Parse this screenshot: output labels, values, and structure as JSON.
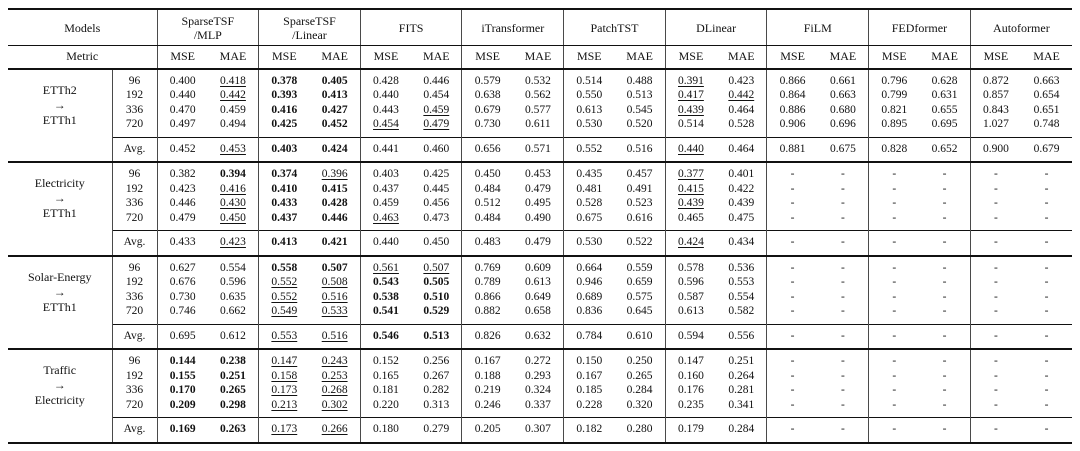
{
  "table": {
    "models_label": "Models",
    "metric_label": "Metric",
    "avg_label": "Avg.",
    "metrics": [
      "MSE",
      "MAE"
    ],
    "style_codes": {
      "b": "best (bold)",
      "u": "second best (underline)"
    },
    "groups": [
      {
        "id": "sparsetsf-mlp",
        "name": [
          "SparseTSF",
          "/MLP"
        ]
      },
      {
        "id": "sparsetsf-linear",
        "name": [
          "SparseTSF",
          "/Linear"
        ]
      },
      {
        "id": "fits",
        "name": [
          "FITS"
        ]
      },
      {
        "id": "itransformer",
        "name": [
          "iTransformer"
        ]
      },
      {
        "id": "patchtst",
        "name": [
          "PatchTST"
        ]
      },
      {
        "id": "dlinear",
        "name": [
          "DLinear"
        ]
      },
      {
        "id": "film",
        "name": [
          "FiLM"
        ]
      },
      {
        "id": "fedformer",
        "name": [
          "FEDformer"
        ]
      },
      {
        "id": "autoformer",
        "name": [
          "Autoformer"
        ]
      }
    ],
    "sections": [
      {
        "dataset": [
          "ETTh2",
          "→",
          "ETTh1"
        ],
        "rows": [
          {
            "horizon": "96",
            "cells": [
              "0.400",
              {
                "v": "0.418",
                "s": "u"
              },
              {
                "v": "0.378",
                "s": "b"
              },
              {
                "v": "0.405",
                "s": "b"
              },
              "0.428",
              "0.446",
              "0.579",
              "0.532",
              "0.514",
              "0.488",
              {
                "v": "0.391",
                "s": "u"
              },
              "0.423",
              "0.866",
              "0.661",
              "0.796",
              "0.628",
              "0.872",
              "0.663"
            ]
          },
          {
            "horizon": "192",
            "cells": [
              "0.440",
              {
                "v": "0.442",
                "s": "u"
              },
              {
                "v": "0.393",
                "s": "b"
              },
              {
                "v": "0.413",
                "s": "b"
              },
              "0.440",
              "0.454",
              "0.638",
              "0.562",
              "0.550",
              "0.513",
              {
                "v": "0.417",
                "s": "u"
              },
              {
                "v": "0.442",
                "s": "u"
              },
              "0.864",
              "0.663",
              "0.799",
              "0.631",
              "0.857",
              "0.654"
            ]
          },
          {
            "horizon": "336",
            "cells": [
              "0.470",
              "0.459",
              {
                "v": "0.416",
                "s": "b"
              },
              {
                "v": "0.427",
                "s": "b"
              },
              "0.443",
              {
                "v": "0.459",
                "s": "u"
              },
              "0.679",
              "0.577",
              "0.613",
              "0.545",
              {
                "v": "0.439",
                "s": "u"
              },
              "0.464",
              "0.886",
              "0.680",
              "0.821",
              "0.655",
              "0.843",
              "0.651"
            ]
          },
          {
            "horizon": "720",
            "cells": [
              "0.497",
              "0.494",
              {
                "v": "0.425",
                "s": "b"
              },
              {
                "v": "0.452",
                "s": "b"
              },
              {
                "v": "0.454",
                "s": "u"
              },
              {
                "v": "0.479",
                "s": "u"
              },
              "0.730",
              "0.611",
              "0.530",
              "0.520",
              "0.514",
              "0.528",
              "0.906",
              "0.696",
              "0.895",
              "0.695",
              "1.027",
              "0.748"
            ]
          }
        ],
        "avg_cells": [
          "0.452",
          {
            "v": "0.453",
            "s": "u"
          },
          {
            "v": "0.403",
            "s": "b"
          },
          {
            "v": "0.424",
            "s": "b"
          },
          "0.441",
          "0.460",
          "0.656",
          "0.571",
          "0.552",
          "0.516",
          {
            "v": "0.440",
            "s": "u"
          },
          "0.464",
          "0.881",
          "0.675",
          "0.828",
          "0.652",
          "0.900",
          "0.679"
        ]
      },
      {
        "dataset": [
          "Electricity",
          "→",
          "ETTh1"
        ],
        "rows": [
          {
            "horizon": "96",
            "cells": [
              "0.382",
              {
                "v": "0.394",
                "s": "b"
              },
              {
                "v": "0.374",
                "s": "b"
              },
              {
                "v": "0.396",
                "s": "u"
              },
              "0.403",
              "0.425",
              "0.450",
              "0.453",
              "0.435",
              "0.457",
              {
                "v": "0.377",
                "s": "u"
              },
              "0.401",
              "-",
              "-",
              "-",
              "-",
              "-",
              "-"
            ]
          },
          {
            "horizon": "192",
            "cells": [
              "0.423",
              {
                "v": "0.416",
                "s": "u"
              },
              {
                "v": "0.410",
                "s": "b"
              },
              {
                "v": "0.415",
                "s": "b"
              },
              "0.437",
              "0.445",
              "0.484",
              "0.479",
              "0.481",
              "0.491",
              {
                "v": "0.415",
                "s": "u"
              },
              "0.422",
              "-",
              "-",
              "-",
              "-",
              "-",
              "-"
            ]
          },
          {
            "horizon": "336",
            "cells": [
              "0.446",
              {
                "v": "0.430",
                "s": "u"
              },
              {
                "v": "0.433",
                "s": "b"
              },
              {
                "v": "0.428",
                "s": "b"
              },
              "0.459",
              "0.456",
              "0.512",
              "0.495",
              "0.528",
              "0.523",
              {
                "v": "0.439",
                "s": "u"
              },
              "0.439",
              "-",
              "-",
              "-",
              "-",
              "-",
              "-"
            ]
          },
          {
            "horizon": "720",
            "cells": [
              "0.479",
              {
                "v": "0.450",
                "s": "u"
              },
              {
                "v": "0.437",
                "s": "b"
              },
              {
                "v": "0.446",
                "s": "b"
              },
              {
                "v": "0.463",
                "s": "u"
              },
              "0.473",
              "0.484",
              "0.490",
              "0.675",
              "0.616",
              "0.465",
              "0.475",
              "-",
              "-",
              "-",
              "-",
              "-",
              "-"
            ]
          }
        ],
        "avg_cells": [
          "0.433",
          {
            "v": "0.423",
            "s": "u"
          },
          {
            "v": "0.413",
            "s": "b"
          },
          {
            "v": "0.421",
            "s": "b"
          },
          "0.440",
          "0.450",
          "0.483",
          "0.479",
          "0.530",
          "0.522",
          {
            "v": "0.424",
            "s": "u"
          },
          "0.434",
          "-",
          "-",
          "-",
          "-",
          "-",
          "-"
        ]
      },
      {
        "dataset": [
          "Solar-Energy",
          "→",
          "ETTh1"
        ],
        "rows": [
          {
            "horizon": "96",
            "cells": [
              "0.627",
              "0.554",
              {
                "v": "0.558",
                "s": "b"
              },
              {
                "v": "0.507",
                "s": "b"
              },
              {
                "v": "0.561",
                "s": "u"
              },
              {
                "v": "0.507",
                "s": "u"
              },
              "0.769",
              "0.609",
              "0.664",
              "0.559",
              "0.578",
              "0.536",
              "-",
              "-",
              "-",
              "-",
              "-",
              "-"
            ]
          },
          {
            "horizon": "192",
            "cells": [
              "0.676",
              "0.596",
              {
                "v": "0.552",
                "s": "u"
              },
              {
                "v": "0.508",
                "s": "u"
              },
              {
                "v": "0.543",
                "s": "b"
              },
              {
                "v": "0.505",
                "s": "b"
              },
              "0.789",
              "0.613",
              "0.946",
              "0.659",
              "0.596",
              "0.553",
              "-",
              "-",
              "-",
              "-",
              "-",
              "-"
            ]
          },
          {
            "horizon": "336",
            "cells": [
              "0.730",
              "0.635",
              {
                "v": "0.552",
                "s": "u"
              },
              {
                "v": "0.516",
                "s": "u"
              },
              {
                "v": "0.538",
                "s": "b"
              },
              {
                "v": "0.510",
                "s": "b"
              },
              "0.866",
              "0.649",
              "0.689",
              "0.575",
              "0.587",
              "0.554",
              "-",
              "-",
              "-",
              "-",
              "-",
              "-"
            ]
          },
          {
            "horizon": "720",
            "cells": [
              "0.746",
              "0.662",
              {
                "v": "0.549",
                "s": "u"
              },
              {
                "v": "0.533",
                "s": "u"
              },
              {
                "v": "0.541",
                "s": "b"
              },
              {
                "v": "0.529",
                "s": "b"
              },
              "0.882",
              "0.658",
              "0.836",
              "0.645",
              "0.613",
              "0.582",
              "-",
              "-",
              "-",
              "-",
              "-",
              "-"
            ]
          }
        ],
        "avg_cells": [
          "0.695",
          "0.612",
          {
            "v": "0.553",
            "s": "u"
          },
          {
            "v": "0.516",
            "s": "u"
          },
          {
            "v": "0.546",
            "s": "b"
          },
          {
            "v": "0.513",
            "s": "b"
          },
          "0.826",
          "0.632",
          "0.784",
          "0.610",
          "0.594",
          "0.556",
          "-",
          "-",
          "-",
          "-",
          "-",
          "-"
        ]
      },
      {
        "dataset": [
          "Traffic",
          "→",
          "Electricity"
        ],
        "rows": [
          {
            "horizon": "96",
            "cells": [
              {
                "v": "0.144",
                "s": "b"
              },
              {
                "v": "0.238",
                "s": "b"
              },
              {
                "v": "0.147",
                "s": "u"
              },
              {
                "v": "0.243",
                "s": "u"
              },
              "0.152",
              "0.256",
              "0.167",
              "0.272",
              "0.150",
              "0.250",
              "0.147",
              "0.251",
              "-",
              "-",
              "-",
              "-",
              "-",
              "-"
            ]
          },
          {
            "horizon": "192",
            "cells": [
              {
                "v": "0.155",
                "s": "b"
              },
              {
                "v": "0.251",
                "s": "b"
              },
              {
                "v": "0.158",
                "s": "u"
              },
              {
                "v": "0.253",
                "s": "u"
              },
              "0.165",
              "0.267",
              "0.188",
              "0.293",
              "0.167",
              "0.265",
              "0.160",
              "0.264",
              "-",
              "-",
              "-",
              "-",
              "-",
              "-"
            ]
          },
          {
            "horizon": "336",
            "cells": [
              {
                "v": "0.170",
                "s": "b"
              },
              {
                "v": "0.265",
                "s": "b"
              },
              {
                "v": "0.173",
                "s": "u"
              },
              {
                "v": "0.268",
                "s": "u"
              },
              "0.181",
              "0.282",
              "0.219",
              "0.324",
              "0.185",
              "0.284",
              "0.176",
              "0.281",
              "-",
              "-",
              "-",
              "-",
              "-",
              "-"
            ]
          },
          {
            "horizon": "720",
            "cells": [
              {
                "v": "0.209",
                "s": "b"
              },
              {
                "v": "0.298",
                "s": "b"
              },
              {
                "v": "0.213",
                "s": "u"
              },
              {
                "v": "0.302",
                "s": "u"
              },
              "0.220",
              "0.313",
              "0.246",
              "0.337",
              "0.228",
              "0.320",
              "0.235",
              "0.341",
              "-",
              "-",
              "-",
              "-",
              "-",
              "-"
            ]
          }
        ],
        "avg_cells": [
          {
            "v": "0.169",
            "s": "b"
          },
          {
            "v": "0.263",
            "s": "b"
          },
          {
            "v": "0.173",
            "s": "u"
          },
          {
            "v": "0.266",
            "s": "u"
          },
          "0.180",
          "0.279",
          "0.205",
          "0.307",
          "0.182",
          "0.280",
          "0.179",
          "0.284",
          "-",
          "-",
          "-",
          "-",
          "-",
          "-"
        ]
      }
    ]
  }
}
